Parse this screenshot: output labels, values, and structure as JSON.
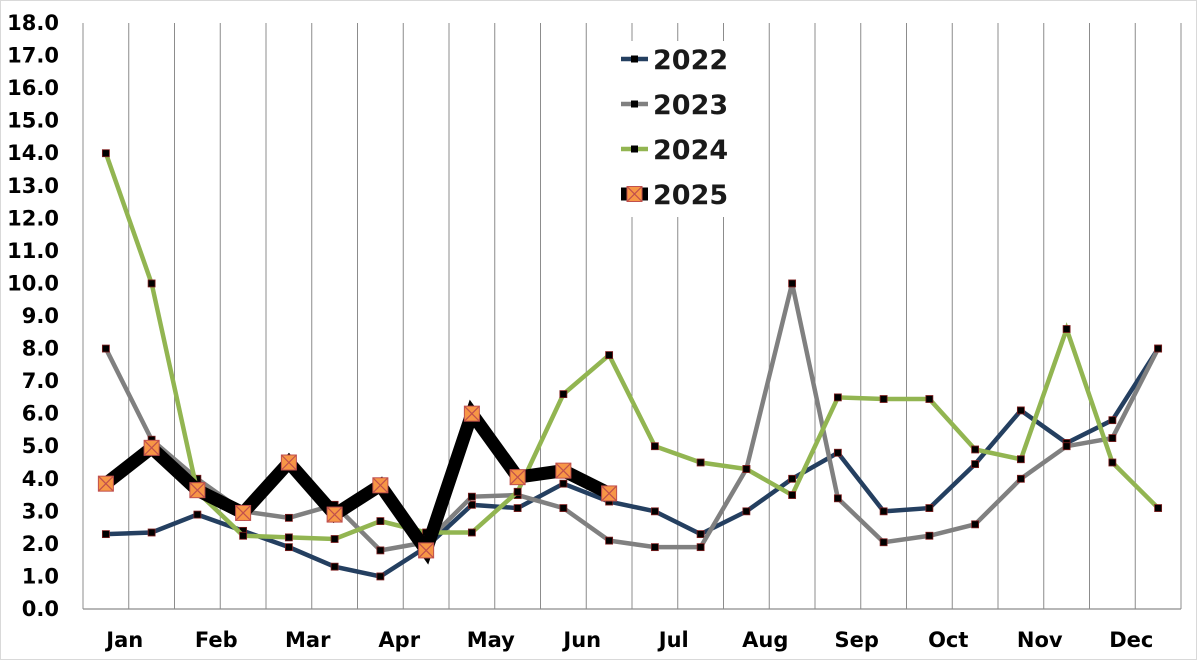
{
  "chart_data": {
    "type": "line",
    "title": "",
    "xlabel": "",
    "ylabel": "",
    "ylim": [
      0,
      18
    ],
    "y_tick_labels": [
      "0.0",
      "1.0",
      "2.0",
      "3.0",
      "4.0",
      "5.0",
      "6.0",
      "7.0",
      "8.0",
      "9.0",
      "10.0",
      "11.0",
      "12.0",
      "13.0",
      "14.0",
      "15.0",
      "16.0",
      "17.0",
      "18.0"
    ],
    "x_tick_labels": [
      "Jan",
      "Feb",
      "Mar",
      "Apr",
      "May",
      "Jun",
      "Jul",
      "Aug",
      "Sep",
      "Oct",
      "Nov",
      "Dec"
    ],
    "grid": "vertical",
    "legend_position": "top-center",
    "series": [
      {
        "name": "2022",
        "color": "#243f60",
        "values": [
          2.3,
          2.35,
          2.9,
          2.4,
          1.9,
          1.3,
          1.0,
          1.9,
          3.2,
          3.1,
          3.85,
          3.3,
          3.0,
          2.3,
          3.0,
          4.0,
          4.8,
          3.0,
          3.1,
          4.45,
          6.1,
          5.1,
          5.8,
          8.0
        ]
      },
      {
        "name": "2023",
        "color": "#808080",
        "values": [
          8.0,
          5.2,
          4.0,
          3.0,
          2.8,
          3.2,
          1.8,
          2.05,
          3.45,
          3.5,
          3.1,
          2.1,
          1.9,
          1.9,
          4.3,
          10.0,
          3.4,
          2.05,
          2.25,
          2.6,
          4.0,
          5.0,
          5.25,
          8.0
        ]
      },
      {
        "name": "2024",
        "color": "#92b551",
        "values": [
          14.0,
          10.0,
          3.6,
          2.25,
          2.2,
          2.15,
          2.7,
          2.35,
          2.35,
          3.6,
          6.6,
          7.8,
          5.0,
          4.5,
          4.3,
          3.5,
          6.5,
          6.45,
          6.45,
          4.9,
          4.6,
          8.6,
          4.5,
          3.1
        ]
      },
      {
        "name": "2025",
        "color": "#000000",
        "marker_color": "#f79646",
        "values": [
          3.85,
          4.95,
          3.65,
          2.95,
          4.5,
          2.9,
          3.8,
          1.8,
          6.0,
          4.05,
          4.25,
          3.55
        ]
      }
    ]
  }
}
